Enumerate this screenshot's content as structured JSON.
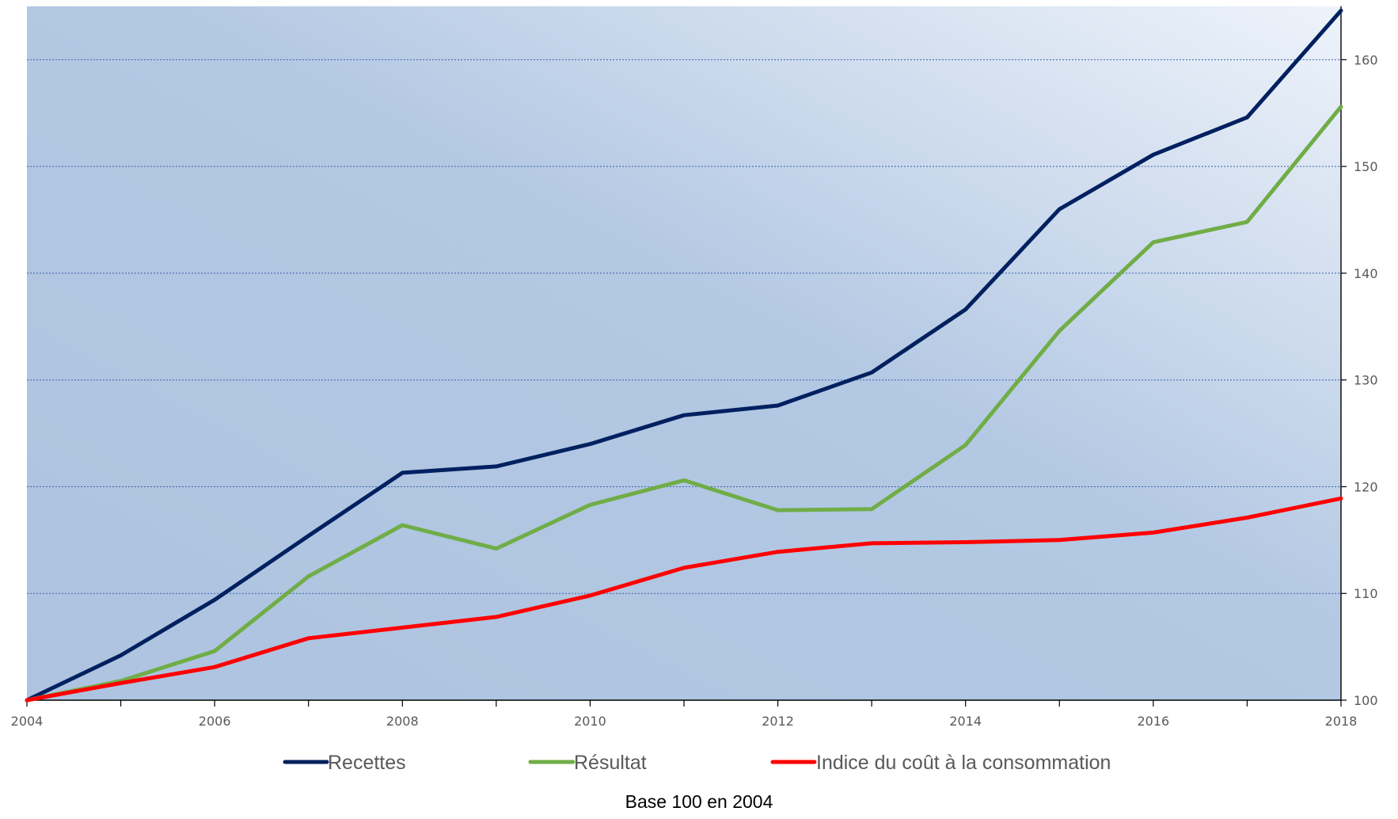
{
  "chart_data": {
    "type": "line",
    "x": [
      2004,
      2005,
      2006,
      2007,
      2008,
      2009,
      2010,
      2011,
      2012,
      2013,
      2014,
      2015,
      2016,
      2017,
      2018
    ],
    "x_tick_labels": [
      "2004",
      "2006",
      "2008",
      "2010",
      "2012",
      "2014",
      "2016",
      "2018"
    ],
    "y_tick_labels": [
      "100",
      "110",
      "120",
      "130",
      "140",
      "150",
      "160"
    ],
    "xlim": [
      2004,
      2018
    ],
    "ylim": [
      100,
      165
    ],
    "y_axis_position": "right",
    "grid": "horizontal dotted",
    "legend_position": "bottom",
    "footnote": "Base 100 en 2004",
    "series": [
      {
        "name": "Recettes",
        "color": "#002060",
        "values": [
          100,
          104.2,
          109.4,
          115.4,
          121.3,
          121.9,
          124.0,
          126.7,
          127.6,
          130.7,
          136.6,
          146.0,
          151.1,
          154.6,
          164.6
        ]
      },
      {
        "name": "Résultat",
        "color": "#70AD47",
        "values": [
          100,
          101.8,
          104.6,
          111.6,
          116.4,
          114.2,
          118.3,
          120.6,
          117.8,
          117.9,
          123.9,
          134.6,
          142.9,
          144.8,
          155.6
        ]
      },
      {
        "name": "Indice du coût à la consommation",
        "color": "#FF0000",
        "values": [
          100,
          101.6,
          103.1,
          105.8,
          106.8,
          107.8,
          109.8,
          112.4,
          113.9,
          114.7,
          114.8,
          115.0,
          115.7,
          117.1,
          118.9
        ]
      }
    ]
  }
}
